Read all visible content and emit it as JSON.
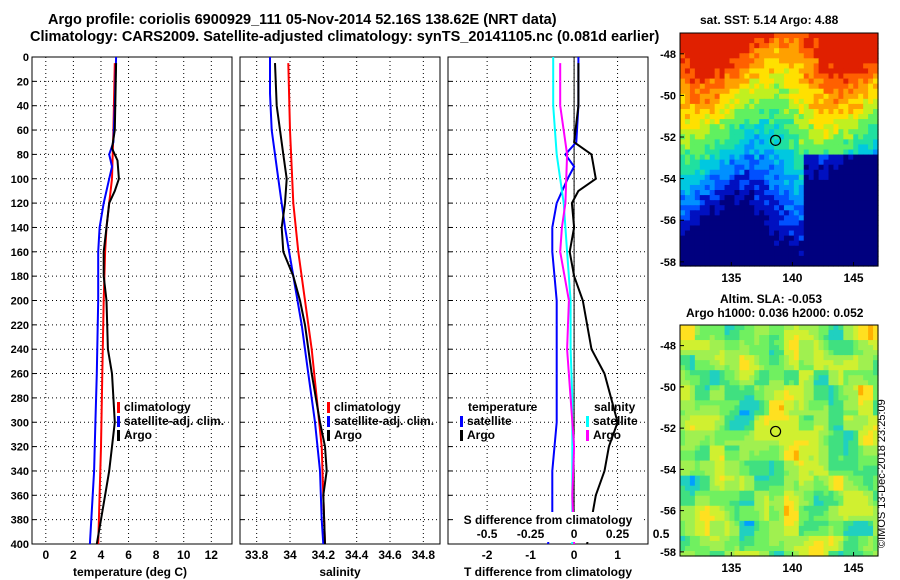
{
  "header": {
    "line1": "Argo profile: coriolis 6900929_111 05-Nov-2014 52.16S 138.62E (NRT data)",
    "line2": "Climatology: CARS2009. Satellite-adjusted climatology: synTS_20141105.nc (0.081d earlier)"
  },
  "sst_map": {
    "title": "sat. SST: 5.14 Argo: 4.88",
    "xticks": [
      "135",
      "140",
      "145"
    ],
    "yticks": [
      "-48",
      "-50",
      "-52",
      "-54",
      "-56",
      "-58"
    ],
    "marker": {
      "lon": 138.62,
      "lat": -52.16
    }
  },
  "sla_map": {
    "title_line1": "Altim. SLA: -0.053",
    "title_line2": "Argo h1000: 0.036 h2000: 0.052",
    "xticks": [
      "135",
      "140",
      "145"
    ],
    "yticks": [
      "-48",
      "-50",
      "-52",
      "-54",
      "-56",
      "-58"
    ],
    "marker": {
      "lon": 138.62,
      "lat": -52.16
    }
  },
  "stamp": "©IMOS 13-Dec-2018 23:25:09",
  "colors": {
    "climatology": "#ff0000",
    "satellite": "#0000ff",
    "argo": "#000000",
    "salinity_satellite": "#00ffff",
    "salinity_argo": "#ff00ff"
  },
  "chart_data": [
    {
      "type": "line",
      "xlabel": "temperature (deg C)",
      "xlim": [
        -1,
        13.5
      ],
      "ylim": [
        400,
        0
      ],
      "xticks": [
        "0",
        "2",
        "4",
        "6",
        "8",
        "10",
        "12"
      ],
      "xtick_values": [
        0,
        2,
        4,
        6,
        8,
        10,
        12
      ],
      "yticks": [
        "0",
        "20",
        "40",
        "60",
        "80",
        "100",
        "120",
        "140",
        "160",
        "180",
        "200",
        "220",
        "240",
        "260",
        "280",
        "300",
        "320",
        "340",
        "360",
        "380",
        "400"
      ],
      "ytick_values": [
        0,
        20,
        40,
        60,
        80,
        100,
        120,
        140,
        160,
        180,
        200,
        220,
        240,
        260,
        280,
        300,
        320,
        340,
        360,
        380,
        400
      ],
      "legend": [
        "climatology",
        "satellite-adj. clim.",
        "Argo"
      ],
      "series": [
        {
          "name": "climatology",
          "color": "#ff0000",
          "depth": [
            5,
            60,
            100,
            120,
            140,
            160,
            200,
            260,
            320,
            360,
            400
          ],
          "values": [
            5.0,
            4.9,
            4.8,
            4.6,
            4.4,
            4.3,
            4.2,
            4.1,
            4.0,
            3.9,
            3.8
          ]
        },
        {
          "name": "satellite-adj. clim.",
          "color": "#0000ff",
          "depth": [
            0,
            40,
            70,
            80,
            90,
            100,
            120,
            140,
            160,
            200,
            260,
            300,
            340,
            360,
            400
          ],
          "values": [
            5.1,
            5.0,
            4.9,
            4.6,
            4.8,
            4.6,
            4.2,
            3.9,
            3.8,
            3.8,
            3.7,
            3.6,
            3.5,
            3.4,
            3.2
          ]
        },
        {
          "name": "Argo",
          "color": "#000000",
          "depth": [
            5,
            60,
            75,
            85,
            100,
            110,
            120,
            140,
            160,
            180,
            200,
            240,
            260,
            300,
            320,
            340,
            360,
            380,
            400
          ],
          "values": [
            5.1,
            5.0,
            4.8,
            5.2,
            5.3,
            5.0,
            4.6,
            4.4,
            4.2,
            4.2,
            4.4,
            4.5,
            4.8,
            5.0,
            4.8,
            4.6,
            4.3,
            4.0,
            3.7
          ]
        }
      ]
    },
    {
      "type": "line",
      "xlabel": "salinity",
      "xlim": [
        33.7,
        34.9
      ],
      "ylim": [
        400,
        0
      ],
      "xticks": [
        "33.8",
        "34",
        "34.2",
        "34.4",
        "34.6",
        "34.8"
      ],
      "xtick_values": [
        33.8,
        34.0,
        34.2,
        34.4,
        34.6,
        34.8
      ],
      "legend": [
        "climatology",
        "satellite-adj. clim.",
        "Argo"
      ],
      "series": [
        {
          "name": "climatology",
          "color": "#ff0000",
          "depth": [
            5,
            60,
            120,
            160,
            200,
            240,
            280,
            320,
            360,
            400
          ],
          "values": [
            33.99,
            34.0,
            34.02,
            34.05,
            34.09,
            34.13,
            34.16,
            34.19,
            34.2,
            34.21
          ]
        },
        {
          "name": "satellite-adj. clim.",
          "color": "#0000ff",
          "depth": [
            0,
            30,
            60,
            100,
            140,
            180,
            220,
            260,
            300,
            340,
            380,
            400
          ],
          "values": [
            33.88,
            33.88,
            33.89,
            33.93,
            33.97,
            34.02,
            34.07,
            34.11,
            34.15,
            34.18,
            34.19,
            34.2
          ]
        },
        {
          "name": "Argo",
          "color": "#000000",
          "depth": [
            5,
            40,
            80,
            100,
            120,
            140,
            160,
            180,
            200,
            220,
            260,
            300,
            320,
            340,
            360,
            400
          ],
          "values": [
            33.91,
            33.92,
            33.96,
            33.98,
            33.97,
            33.95,
            33.96,
            34.02,
            34.06,
            34.09,
            34.13,
            34.18,
            34.21,
            34.22,
            34.2,
            34.21
          ]
        }
      ]
    },
    {
      "type": "line",
      "xlabel": "T difference from climatology",
      "xlabel_top": "S difference from climatology",
      "xlim": [
        -2.9,
        1.7
      ],
      "ylim": [
        400,
        0
      ],
      "xticks": [
        "-2",
        "-1",
        "0",
        "1"
      ],
      "xtick_values": [
        -2,
        -1,
        0,
        1
      ],
      "s_xlim": [
        -0.725,
        0.425
      ],
      "s_xticks": [
        "-0.5",
        "-0.25",
        "0",
        "0.25",
        "0.5"
      ],
      "s_xtick_values": [
        -0.5,
        -0.25,
        0,
        0.25,
        0.5
      ],
      "legend_temperature_title": "temperature",
      "legend_temperature": [
        "satellite",
        "Argo"
      ],
      "legend_salinity_title": "salinity",
      "legend_salinity": [
        "satellite",
        "Argo"
      ],
      "series": [
        {
          "name": "temperature satellite",
          "color": "#0000ff",
          "axis": "T",
          "depth": [
            0,
            40,
            70,
            80,
            90,
            100,
            120,
            140,
            160,
            200,
            260,
            300,
            340,
            380,
            400
          ],
          "values": [
            0.1,
            0.1,
            0.05,
            -0.2,
            0.0,
            -0.15,
            -0.4,
            -0.5,
            -0.5,
            -0.4,
            -0.4,
            -0.4,
            -0.5,
            -0.5,
            -0.6
          ]
        },
        {
          "name": "temperature Argo",
          "color": "#000000",
          "axis": "T",
          "depth": [
            5,
            40,
            70,
            80,
            100,
            110,
            120,
            140,
            160,
            180,
            200,
            240,
            260,
            300,
            320,
            340,
            360,
            380,
            400
          ],
          "values": [
            0.1,
            0.1,
            0.0,
            0.4,
            0.5,
            0.1,
            -0.05,
            0.0,
            -0.1,
            0.0,
            0.2,
            0.4,
            0.7,
            1.0,
            0.8,
            0.7,
            0.5,
            0.4,
            0.3
          ]
        },
        {
          "name": "salinity satellite",
          "color": "#00ffff",
          "axis": "S",
          "depth": [
            0,
            40,
            80,
            120,
            160,
            200,
            240,
            280,
            320,
            360,
            400
          ],
          "values": [
            -0.12,
            -0.12,
            -0.1,
            -0.06,
            -0.04,
            -0.02,
            -0.02,
            -0.01,
            -0.01,
            -0.01,
            -0.01
          ]
        },
        {
          "name": "salinity Argo",
          "color": "#ff00ff",
          "axis": "S",
          "depth": [
            5,
            40,
            80,
            120,
            140,
            160,
            200,
            240,
            280,
            320,
            360,
            400
          ],
          "values": [
            -0.08,
            -0.08,
            -0.04,
            -0.05,
            -0.07,
            -0.08,
            -0.03,
            -0.04,
            -0.02,
            0.0,
            -0.01,
            0.0
          ]
        }
      ]
    }
  ]
}
